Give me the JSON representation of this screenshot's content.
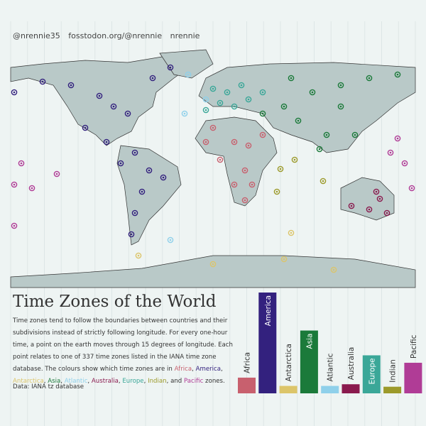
{
  "header": {
    "handles": [
      "@nrennie35",
      "fosstodon.org/@nrennie",
      "nrennie"
    ]
  },
  "title": "Time Zones of the World",
  "description": [
    {
      "text": "Time zones tend to follow the boundaries between countries and their subdivisions instead of strictly following longitude. For every one-hour time, a point on the earth moves  through 15 degrees of longitude. Each point relates to one of 337 time zones listed in the IANA time zone database. The colours show which time zones are in "
    },
    {
      "text": "Africa",
      "color": "#c8606e"
    },
    {
      "text": ", "
    },
    {
      "text": "America",
      "color": "#33217e"
    },
    {
      "text": ", "
    },
    {
      "text": "Antarctica",
      "color": "#dcc56a"
    },
    {
      "text": ", "
    },
    {
      "text": "Asia",
      "color": "#1b7a3a"
    },
    {
      "text": ", "
    },
    {
      "text": "Atlantic",
      "color": "#8fd0ea"
    },
    {
      "text": ", "
    },
    {
      "text": "Australia",
      "color": "#8a1a4e"
    },
    {
      "text": ", "
    },
    {
      "text": "Europe",
      "color": "#3aa798"
    },
    {
      "text": ", "
    },
    {
      "text": "Indian",
      "color": "#9c9a2b"
    },
    {
      "text": ", and "
    },
    {
      "text": "Pacific",
      "color": "#b03c96"
    },
    {
      "text": " zones."
    }
  ],
  "source": "Data: IANA tz database",
  "chart_data": {
    "type": "bar",
    "categories": [
      "Africa",
      "America",
      "Antarctica",
      "Asia",
      "Atlantic",
      "Australia",
      "Europe",
      "Indian",
      "Pacific"
    ],
    "values": [
      19,
      122,
      9,
      76,
      9,
      11,
      46,
      8,
      37
    ],
    "colors": [
      "#c8606e",
      "#33217e",
      "#dcc56a",
      "#1b7a3a",
      "#8fd0ea",
      "#8a1a4e",
      "#3aa798",
      "#9c9a2b",
      "#b03c96"
    ]
  }
}
